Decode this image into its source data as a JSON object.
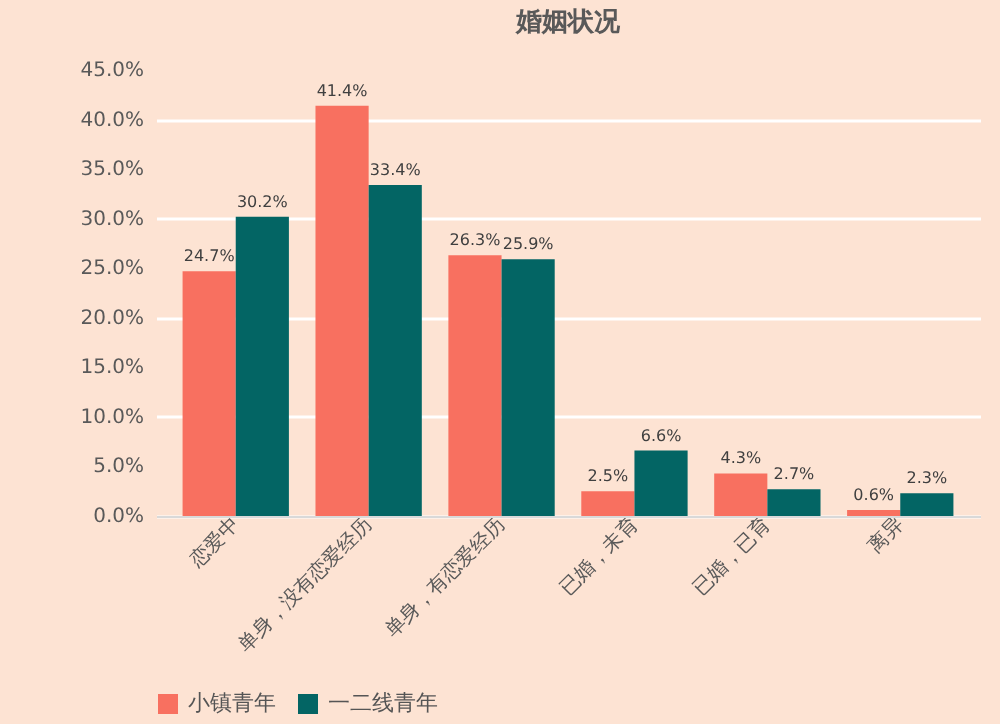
{
  "chart_data": {
    "type": "bar",
    "title": "婚姻状况",
    "categories": [
      "恋爱中",
      "单身，没有恋爱经历",
      "单身，有恋爱经历",
      "已婚，未育",
      "已婚，已育",
      "离异"
    ],
    "series": [
      {
        "name": "小镇青年",
        "color": "#f87060",
        "values": [
          24.7,
          41.4,
          26.3,
          2.5,
          4.3,
          0.6
        ],
        "value_labels": [
          "24.7%",
          "41.4%",
          "26.3%",
          "2.5%",
          "4.3%",
          "0.6%"
        ]
      },
      {
        "name": "一二线青年",
        "color": "#036564",
        "values": [
          30.2,
          33.4,
          25.9,
          6.6,
          2.7,
          2.3
        ],
        "value_labels": [
          "30.2%",
          "33.4%",
          "25.9%",
          "6.6%",
          "2.7%",
          "2.3%"
        ]
      }
    ],
    "ylim": [
      0,
      45
    ],
    "yticks": [
      {
        "value": 0,
        "label": "0.0%"
      },
      {
        "value": 5,
        "label": "5.0%"
      },
      {
        "value": 10,
        "label": "10.0%"
      },
      {
        "value": 15,
        "label": "15.0%"
      },
      {
        "value": 20,
        "label": "20.0%"
      },
      {
        "value": 25,
        "label": "25.0%"
      },
      {
        "value": 30,
        "label": "30.0%"
      },
      {
        "value": 35,
        "label": "35.0%"
      },
      {
        "value": 40,
        "label": "40.0%"
      },
      {
        "value": 45,
        "label": "45.0%"
      }
    ],
    "grid": "y",
    "legend": "bottom"
  }
}
